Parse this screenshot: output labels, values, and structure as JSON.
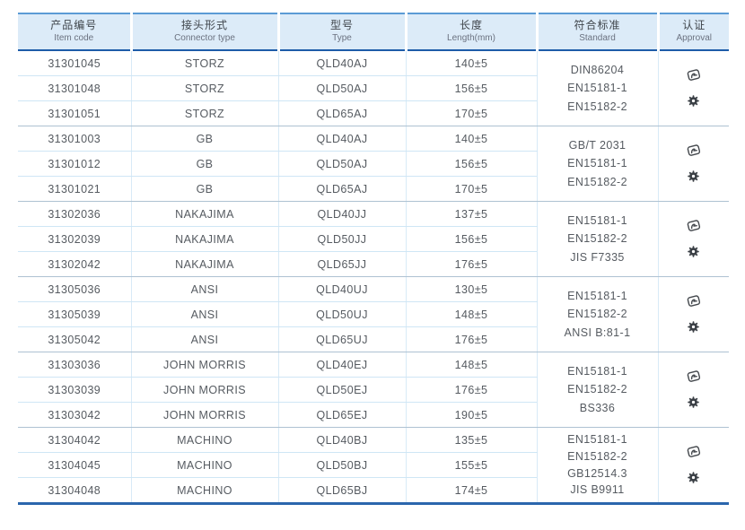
{
  "table": {
    "headers": [
      {
        "zh": "产品编号",
        "en": "Item code"
      },
      {
        "zh": "接头形式",
        "en": "Connector type"
      },
      {
        "zh": "型号",
        "en": "Type"
      },
      {
        "zh": "长度",
        "en": "Length(mm)"
      },
      {
        "zh": "符合标准",
        "en": "Standard"
      },
      {
        "zh": "认证",
        "en": "Approval"
      }
    ],
    "groups": [
      {
        "rows": [
          {
            "code": "31301045",
            "connector": "STORZ",
            "type": "QLD40AJ",
            "length": "140±5"
          },
          {
            "code": "31301048",
            "connector": "STORZ",
            "type": "QLD50AJ",
            "length": "156±5"
          },
          {
            "code": "31301051",
            "connector": "STORZ",
            "type": "QLD65AJ",
            "length": "170±5"
          }
        ],
        "standards": [
          "DIN86204",
          "EN15181-1",
          "EN15182-2"
        ],
        "approval_icons": [
          "approval-stamp-icon",
          "gear-icon"
        ]
      },
      {
        "rows": [
          {
            "code": "31301003",
            "connector": "GB",
            "type": "QLD40AJ",
            "length": "140±5"
          },
          {
            "code": "31301012",
            "connector": "GB",
            "type": "QLD50AJ",
            "length": "156±5"
          },
          {
            "code": "31301021",
            "connector": "GB",
            "type": "QLD65AJ",
            "length": "170±5"
          }
        ],
        "standards": [
          "GB/T 2031",
          "EN15181-1",
          "EN15182-2"
        ],
        "approval_icons": [
          "approval-stamp-icon",
          "gear-icon"
        ]
      },
      {
        "rows": [
          {
            "code": "31302036",
            "connector": "NAKAJIMA",
            "type": "QLD40JJ",
            "length": "137±5"
          },
          {
            "code": "31302039",
            "connector": "NAKAJIMA",
            "type": "QLD50JJ",
            "length": "156±5"
          },
          {
            "code": "31302042",
            "connector": "NAKAJIMA",
            "type": "QLD65JJ",
            "length": "176±5"
          }
        ],
        "standards": [
          "EN15181-1",
          "EN15182-2",
          "JIS F7335"
        ],
        "approval_icons": [
          "approval-stamp-icon",
          "gear-icon"
        ]
      },
      {
        "rows": [
          {
            "code": "31305036",
            "connector": "ANSI",
            "type": "QLD40UJ",
            "length": "130±5"
          },
          {
            "code": "31305039",
            "connector": "ANSI",
            "type": "QLD50UJ",
            "length": "148±5"
          },
          {
            "code": "31305042",
            "connector": "ANSI",
            "type": "QLD65UJ",
            "length": "176±5"
          }
        ],
        "standards": [
          "EN15181-1",
          "EN15182-2",
          "ANSI B:81-1"
        ],
        "approval_icons": [
          "approval-stamp-icon",
          "gear-icon"
        ]
      },
      {
        "rows": [
          {
            "code": "31303036",
            "connector": "JOHN MORRIS",
            "type": "QLD40EJ",
            "length": "148±5"
          },
          {
            "code": "31303039",
            "connector": "JOHN MORRIS",
            "type": "QLD50EJ",
            "length": "176±5"
          },
          {
            "code": "31303042",
            "connector": "JOHN MORRIS",
            "type": "QLD65EJ",
            "length": "190±5"
          }
        ],
        "standards": [
          "EN15181-1",
          "EN15182-2",
          "BS336"
        ],
        "approval_icons": [
          "approval-stamp-icon",
          "gear-icon"
        ]
      },
      {
        "rows": [
          {
            "code": "31304042",
            "connector": "MACHINO",
            "type": "QLD40BJ",
            "length": "135±5"
          },
          {
            "code": "31304045",
            "connector": "MACHINO",
            "type": "QLD50BJ",
            "length": "155±5"
          },
          {
            "code": "31304048",
            "connector": "MACHINO",
            "type": "QLD65BJ",
            "length": "174±5"
          }
        ],
        "standards": [
          "EN15181-1",
          "EN15182-2",
          "GB12514.3",
          "JIS B9911"
        ],
        "approval_icons": [
          "approval-stamp-icon",
          "gear-icon"
        ]
      }
    ],
    "colors": {
      "header_bg": "#dcebf8",
      "header_top_line": "#5b9bd5",
      "header_bottom_line": "#1d5ca8",
      "row_line": "#cfe6f5",
      "group_line": "#aec2d2",
      "table_bottom_line": "#2b66ad",
      "text": "#565b61",
      "icon": "#3b4046"
    }
  }
}
